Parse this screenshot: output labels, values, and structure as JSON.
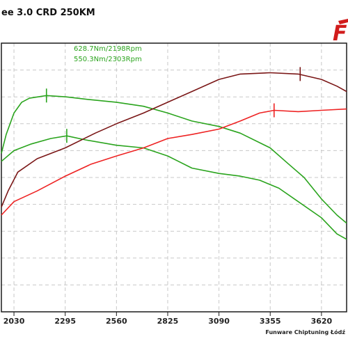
{
  "header": {
    "title": "ee 3.0 CRD 250KM",
    "logo_text": "F"
  },
  "footer": {
    "credit": "Funware Chiptuning Łódź"
  },
  "colors": {
    "background": "#ffffff",
    "grid": "#c8c8c8",
    "border": "#1a1a1a",
    "power_stock": "#b03b3b",
    "power_tuned": "#7a1616",
    "torque_stock": "#ee2323",
    "torque_tuned": "#2aa41d",
    "annotation_green": "#2aa41d",
    "logo_red": "#d11c1c"
  },
  "chart_data": {
    "type": "line",
    "title": "ee 3.0 CRD 250KM",
    "xlabel": "",
    "ylabel": "",
    "x_ticks": [
      2030,
      2295,
      2560,
      2825,
      3090,
      3355,
      3620
    ],
    "xlim": [
      1965,
      3750
    ],
    "ylim": [
      0,
      100
    ],
    "y_axis_labels_visible": false,
    "grid": true,
    "annotations": [
      {
        "text": "628.7Nm/2198Rpm",
        "x": 2198,
        "color": "#2aa41d"
      },
      {
        "text": "550.3Nm/2303Rpm",
        "x": 2303,
        "color": "#2aa41d"
      }
    ],
    "series": [
      {
        "color": "#2aa41d",
        "marker": {
          "x": 2198,
          "y": 81
        },
        "points": [
          [
            1965,
            59
          ],
          [
            1990,
            66
          ],
          [
            2030,
            74
          ],
          [
            2070,
            78
          ],
          [
            2110,
            79.5
          ],
          [
            2198,
            80.5
          ],
          [
            2300,
            80
          ],
          [
            2420,
            79
          ],
          [
            2560,
            78
          ],
          [
            2700,
            76.5
          ],
          [
            2825,
            74
          ],
          [
            2950,
            71
          ],
          [
            3090,
            69
          ],
          [
            3200,
            66.5
          ],
          [
            3355,
            61
          ],
          [
            3450,
            55
          ],
          [
            3530,
            50
          ],
          [
            3620,
            42
          ],
          [
            3700,
            36
          ],
          [
            3750,
            33
          ]
        ]
      },
      {
        "color": "#2aa41d",
        "marker": {
          "x": 2303,
          "y": 59.5
        },
        "points": [
          [
            1965,
            56
          ],
          [
            2030,
            60
          ],
          [
            2120,
            62.5
          ],
          [
            2220,
            64.5
          ],
          [
            2303,
            65.5
          ],
          [
            2400,
            64
          ],
          [
            2560,
            62
          ],
          [
            2700,
            61
          ],
          [
            2825,
            58
          ],
          [
            2950,
            53.5
          ],
          [
            3090,
            51.5
          ],
          [
            3200,
            50.5
          ],
          [
            3300,
            49
          ],
          [
            3400,
            46
          ],
          [
            3500,
            41
          ],
          [
            3620,
            35
          ],
          [
            3700,
            29
          ],
          [
            3750,
            27
          ]
        ]
      },
      {
        "color": "#7a1616",
        "marker": {
          "x": 3510,
          "y": 83.5
        },
        "points": [
          [
            1965,
            39
          ],
          [
            2000,
            45
          ],
          [
            2050,
            52
          ],
          [
            2150,
            57
          ],
          [
            2295,
            61
          ],
          [
            2450,
            66.5
          ],
          [
            2560,
            70
          ],
          [
            2700,
            74
          ],
          [
            2825,
            78
          ],
          [
            2950,
            82
          ],
          [
            3090,
            86.5
          ],
          [
            3200,
            88.5
          ],
          [
            3355,
            89
          ],
          [
            3500,
            88.5
          ],
          [
            3620,
            86.5
          ],
          [
            3700,
            84
          ],
          [
            3750,
            82
          ]
        ]
      },
      {
        "color": "#ee2323",
        "marker": {
          "x": 3375,
          "y": 69
        },
        "points": [
          [
            1965,
            36
          ],
          [
            2030,
            41
          ],
          [
            2150,
            45
          ],
          [
            2295,
            50.5
          ],
          [
            2430,
            55
          ],
          [
            2560,
            58
          ],
          [
            2700,
            61
          ],
          [
            2825,
            64.5
          ],
          [
            2950,
            66
          ],
          [
            3090,
            68
          ],
          [
            3200,
            71
          ],
          [
            3300,
            74
          ],
          [
            3375,
            75
          ],
          [
            3500,
            74.5
          ],
          [
            3620,
            75
          ],
          [
            3750,
            75.5
          ]
        ]
      }
    ]
  }
}
